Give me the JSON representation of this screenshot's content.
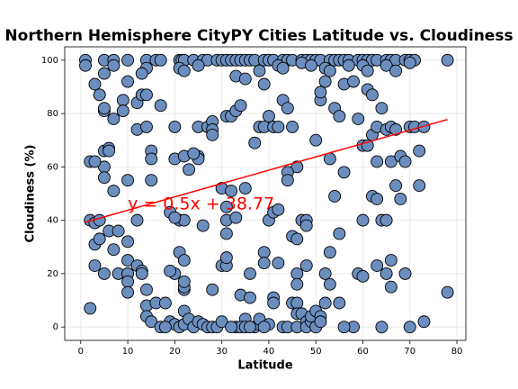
{
  "chart_data": {
    "type": "scatter",
    "title": "Northern Hemisphere CityPY Cities Latitude vs. Cloudiness",
    "x_label": "Latitude",
    "y_label": "Cloudiness (%)",
    "annotation": "y = 0.5x + 38.77",
    "xlim": [
      -3.4,
      81.9
    ],
    "ylim": [
      -5,
      105
    ],
    "xticks": [
      0,
      10,
      20,
      30,
      40,
      50,
      60,
      70,
      80
    ],
    "yticks": [
      0,
      20,
      40,
      60,
      80,
      100
    ],
    "grid": true,
    "color": "#6b8ebf",
    "edge_color": "#000000",
    "x": [
      1,
      5,
      7,
      10,
      14,
      16,
      17,
      21,
      21.5,
      22,
      24,
      26,
      27,
      29,
      30,
      31,
      32,
      33,
      34,
      35,
      36,
      37,
      39,
      40,
      41,
      43,
      44,
      45,
      47,
      48,
      49,
      50,
      51,
      53,
      54,
      55,
      56,
      57,
      59,
      60,
      61,
      62,
      63,
      65,
      66,
      67,
      69,
      70,
      71,
      78,
      1,
      7,
      14,
      21,
      22,
      25,
      38,
      42,
      43,
      47,
      49,
      52,
      53,
      57,
      60,
      61,
      65,
      67,
      70,
      5,
      3,
      10,
      13,
      9,
      12,
      13,
      14,
      17,
      4,
      5,
      5,
      7,
      9,
      12,
      14,
      20,
      25,
      27,
      28,
      28,
      28,
      31,
      32,
      33,
      34,
      33,
      35,
      37,
      38,
      39,
      39,
      40,
      41,
      42,
      43,
      44,
      45,
      46,
      44,
      44,
      50,
      51,
      51,
      52,
      54,
      55,
      56,
      58,
      59,
      60,
      61,
      61,
      62,
      62,
      63,
      63,
      64,
      65,
      66,
      66,
      67,
      67,
      68,
      68,
      69,
      70,
      71,
      72,
      72,
      73,
      62,
      63,
      64,
      65,
      56,
      54,
      55,
      53,
      53,
      52,
      53,
      55,
      59,
      60,
      60,
      58,
      64,
      65,
      66,
      66,
      63,
      69,
      70,
      73,
      78,
      2,
      3,
      4,
      3,
      4,
      6,
      8,
      7,
      8,
      10,
      3,
      5,
      2,
      10,
      7,
      5,
      5,
      5,
      6,
      6,
      2,
      3,
      10,
      10,
      10,
      10,
      10,
      12,
      13,
      13,
      14,
      14,
      14,
      16,
      15,
      18,
      17,
      19,
      20,
      21,
      22,
      20,
      21,
      22,
      22,
      22,
      22,
      22,
      23,
      24,
      25,
      26,
      27,
      28,
      28,
      29,
      30,
      30,
      31,
      30,
      31,
      31,
      31,
      31,
      32,
      33,
      34,
      35,
      35,
      36,
      36,
      37,
      38,
      38,
      39,
      39,
      40,
      41,
      41,
      41,
      40,
      42,
      42,
      43,
      44,
      45,
      46,
      46,
      46,
      45,
      46,
      46,
      46,
      47,
      48,
      48,
      48,
      47,
      48,
      48,
      49,
      49,
      50,
      50,
      51,
      51,
      52,
      56,
      21,
      22,
      19,
      20,
      20,
      22,
      23,
      25,
      25,
      26,
      24,
      19,
      15,
      15,
      12,
      15,
      18,
      33,
      34,
      35,
      36,
      32,
      39
    ],
    "values": [
      100,
      100,
      100,
      100,
      100,
      100,
      100,
      100,
      100,
      100,
      100,
      100,
      100,
      100,
      100,
      100,
      100,
      100,
      100,
      100,
      100,
      100,
      100,
      100,
      100,
      100,
      100,
      100,
      100,
      100,
      100,
      100,
      100,
      100,
      100,
      100,
      100,
      100,
      100,
      100,
      100,
      100,
      100,
      100,
      100,
      100,
      100,
      100,
      100,
      100,
      98,
      98,
      97,
      97,
      96,
      98,
      96,
      98,
      97,
      99,
      98,
      97,
      96,
      98,
      98,
      96,
      98,
      96,
      99,
      95,
      91,
      92,
      95,
      85,
      84,
      87,
      87,
      83,
      87,
      81,
      82,
      78,
      81,
      74,
      75,
      75,
      75,
      75,
      77,
      74,
      72,
      79,
      79,
      81,
      83,
      94,
      93,
      69,
      75,
      75,
      91,
      79,
      75,
      75,
      85,
      82,
      75,
      60,
      58,
      55,
      70,
      85,
      88,
      92,
      82,
      79,
      91,
      92,
      78,
      68,
      68,
      89,
      87,
      72,
      75,
      62,
      82,
      74,
      62,
      75,
      74,
      53,
      48,
      64,
      62,
      75,
      75,
      66,
      53,
      75,
      49,
      48,
      40,
      40,
      58,
      49,
      35,
      63,
      28,
      20,
      16,
      9,
      20,
      19,
      40,
      0,
      0,
      20,
      15,
      25,
      23,
      20,
      0,
      2,
      13,
      40,
      39,
      40,
      31,
      33,
      36,
      36,
      29,
      20,
      20,
      23,
      20,
      7,
      55,
      51,
      60,
      56,
      66,
      67,
      66,
      62,
      62,
      32,
      25,
      20,
      17,
      13,
      23,
      21,
      20,
      14,
      8,
      4,
      9,
      2,
      9,
      0,
      2,
      1,
      0,
      1,
      20,
      28,
      14,
      15,
      17,
      25,
      6,
      3,
      0,
      2,
      1,
      0,
      0,
      14,
      0,
      2,
      23,
      23,
      52,
      45,
      40,
      35,
      26,
      51,
      41,
      12,
      3,
      52,
      20,
      11,
      0,
      1,
      3,
      28,
      24,
      40,
      43,
      11,
      9,
      1,
      44,
      24,
      0,
      0,
      34,
      33,
      20,
      16,
      9,
      9,
      5,
      0,
      40,
      40,
      38,
      23,
      5,
      2,
      0,
      2,
      4,
      6,
      0,
      4,
      2,
      9,
      0,
      40,
      40,
      43,
      41,
      63,
      64,
      59,
      64,
      63,
      38,
      65,
      21,
      66,
      63,
      40,
      55,
      0,
      0,
      0,
      0,
      0,
      0,
      0
    ],
    "regression": {
      "name": "y = 0.5x + 38.77",
      "color": "#ff0000",
      "x": [
        1,
        78
      ],
      "values": [
        39.27,
        77.77
      ]
    }
  }
}
